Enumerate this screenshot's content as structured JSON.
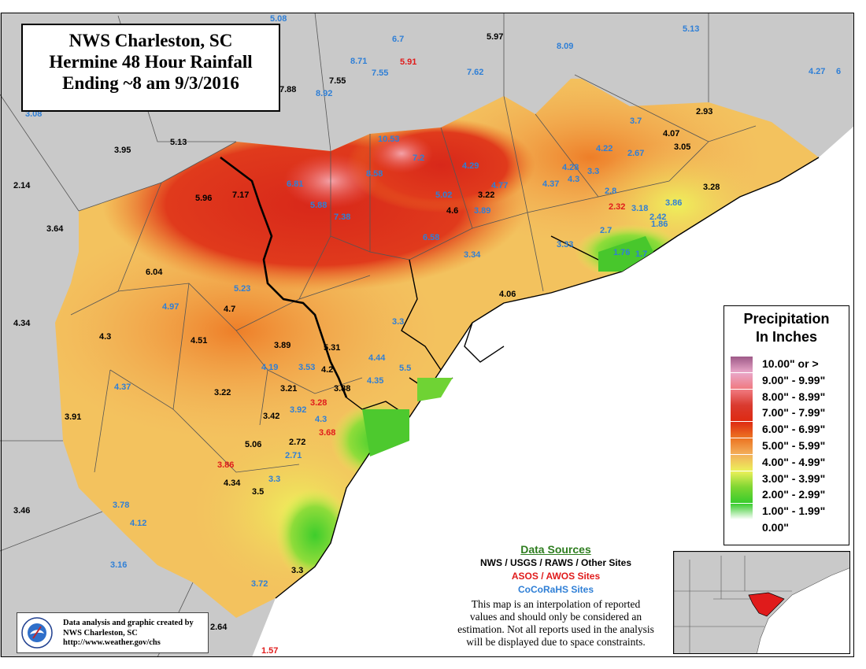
{
  "title": {
    "line1": "NWS Charleston, SC",
    "line2": "Hermine 48 Hour Rainfall",
    "line3": "Ending ~8 am 9/3/2016"
  },
  "legend": {
    "title_line1": "Precipitation",
    "title_line2": "In Inches",
    "items": [
      {
        "label": "10.00\" or >",
        "color": "#9e5a88"
      },
      {
        "label": "9.00\" - 9.99\"",
        "color": "#e9a6c8"
      },
      {
        "label": "8.00\" - 8.99\"",
        "color": "#f07a80"
      },
      {
        "label": "7.00\" - 7.99\"",
        "color": "#d93a2f"
      },
      {
        "label": "6.00\" - 6.99\"",
        "color": "#de2a12"
      },
      {
        "label": "5.00\" - 5.99\"",
        "color": "#ec7422"
      },
      {
        "label": "4.00\" - 4.99\"",
        "color": "#f3b05b"
      },
      {
        "label": "3.00\" - 3.99\"",
        "color": "#ecf05a"
      },
      {
        "label": "2.00\" - 2.99\"",
        "color": "#7fd632"
      },
      {
        "label": "1.00\" - 1.99\"",
        "color": "#38cc2c"
      },
      {
        "label": "0.00\"",
        "color": "#ffffff"
      }
    ]
  },
  "sources": {
    "heading": "Data Sources",
    "line_nws": "NWS / USGS / RAWS / Other Sites",
    "line_asos": "ASOS / AWOS Sites",
    "line_cocorahs": "CoCoRaHS Sites",
    "note_line1": "This map is an interpolation of reported",
    "note_line2": "values and should only be considered an",
    "note_line3": "estimation. Not all reports used in the analysis",
    "note_line4": "will be displayed due to space constraints.",
    "colors": {
      "nws": "#000000",
      "asos": "#e01b1b",
      "cocorahs": "#2f7fd6",
      "heading": "#2e7d1f"
    }
  },
  "credit": {
    "line1": "Data analysis and graphic created by",
    "line2": "NWS Charleston, SC",
    "line3": "http://www.weather.gov/chs",
    "logo_text": "NATIONAL WEATHER SERVICE"
  },
  "observations": [
    {
      "v": "5.08",
      "t": "c"
    },
    {
      "v": "6.7",
      "t": "c"
    },
    {
      "v": "5.97",
      "t": "n"
    },
    {
      "v": "8.09",
      "t": "c"
    },
    {
      "v": "5.13",
      "t": "c"
    },
    {
      "v": "8.71",
      "t": "c"
    },
    {
      "v": "5.91",
      "t": "a"
    },
    {
      "v": "7.55",
      "t": "c"
    },
    {
      "v": "7.62",
      "t": "c"
    },
    {
      "v": "4.27",
      "t": "c"
    },
    {
      "v": "6",
      "t": "c"
    },
    {
      "v": "7.88",
      "t": "n"
    },
    {
      "v": "7.55",
      "t": "n"
    },
    {
      "v": "8.92",
      "t": "c"
    },
    {
      "v": "3.08",
      "t": "c"
    },
    {
      "v": "2.93",
      "t": "n"
    },
    {
      "v": "3.7",
      "t": "c"
    },
    {
      "v": "4.07",
      "t": "n"
    },
    {
      "v": "3.05",
      "t": "n"
    },
    {
      "v": "3.95",
      "t": "n"
    },
    {
      "v": "5.13",
      "t": "n"
    },
    {
      "v": "10.53",
      "t": "c"
    },
    {
      "v": "4.22",
      "t": "c"
    },
    {
      "v": "2.67",
      "t": "c"
    },
    {
      "v": "7.2",
      "t": "c"
    },
    {
      "v": "4.29",
      "t": "c"
    },
    {
      "v": "4.28",
      "t": "c"
    },
    {
      "v": "3.3",
      "t": "c"
    },
    {
      "v": "8.58",
      "t": "c"
    },
    {
      "v": "4.37",
      "t": "c"
    },
    {
      "v": "4.3",
      "t": "c"
    },
    {
      "v": "3.28",
      "t": "n"
    },
    {
      "v": "2.14",
      "t": "n"
    },
    {
      "v": "6.81",
      "t": "c"
    },
    {
      "v": "5.02",
      "t": "c"
    },
    {
      "v": "3.22",
      "t": "n"
    },
    {
      "v": "4.77",
      "t": "c"
    },
    {
      "v": "2.8",
      "t": "c"
    },
    {
      "v": "5.96",
      "t": "n"
    },
    {
      "v": "7.17",
      "t": "n"
    },
    {
      "v": "5.88",
      "t": "c"
    },
    {
      "v": "4.6",
      "t": "n"
    },
    {
      "v": "3.89",
      "t": "c"
    },
    {
      "v": "2.32",
      "t": "a"
    },
    {
      "v": "3.18",
      "t": "c"
    },
    {
      "v": "3.86",
      "t": "c"
    },
    {
      "v": "7.38",
      "t": "c"
    },
    {
      "v": "2.42",
      "t": "c"
    },
    {
      "v": "3.64",
      "t": "n"
    },
    {
      "v": "1.86",
      "t": "c"
    },
    {
      "v": "6.58",
      "t": "c"
    },
    {
      "v": "2.7",
      "t": "c"
    },
    {
      "v": "3.33",
      "t": "c"
    },
    {
      "v": "3.34",
      "t": "c"
    },
    {
      "v": "1.76",
      "t": "c"
    },
    {
      "v": "1.7",
      "t": "c"
    },
    {
      "v": "6.04",
      "t": "n"
    },
    {
      "v": "5.23",
      "t": "c"
    },
    {
      "v": "4.06",
      "t": "n"
    },
    {
      "v": "4.97",
      "t": "c"
    },
    {
      "v": "4.7",
      "t": "n"
    },
    {
      "v": "4.34",
      "t": "n"
    },
    {
      "v": "3.3",
      "t": "c"
    },
    {
      "v": "4.3",
      "t": "n"
    },
    {
      "v": "4.51",
      "t": "n"
    },
    {
      "v": "3.89",
      "t": "n"
    },
    {
      "v": "5.31",
      "t": "n"
    },
    {
      "v": "4.44",
      "t": "c"
    },
    {
      "v": "4.19",
      "t": "c"
    },
    {
      "v": "3.53",
      "t": "c"
    },
    {
      "v": "4.2",
      "t": "n"
    },
    {
      "v": "5.5",
      "t": "c"
    },
    {
      "v": "4.37",
      "t": "c"
    },
    {
      "v": "3.21",
      "t": "n"
    },
    {
      "v": "4.35",
      "t": "c"
    },
    {
      "v": "3.22",
      "t": "n"
    },
    {
      "v": "3.88",
      "t": "n"
    },
    {
      "v": "3.28",
      "t": "a"
    },
    {
      "v": "3.91",
      "t": "n"
    },
    {
      "v": "3.42",
      "t": "n"
    },
    {
      "v": "3.92",
      "t": "c"
    },
    {
      "v": "4.3",
      "t": "c"
    },
    {
      "v": "3.68",
      "t": "a"
    },
    {
      "v": "2.72",
      "t": "n"
    },
    {
      "v": "5.06",
      "t": "n"
    },
    {
      "v": "2.71",
      "t": "c"
    },
    {
      "v": "3.86",
      "t": "a"
    },
    {
      "v": "4.34",
      "t": "n"
    },
    {
      "v": "3.3",
      "t": "c"
    },
    {
      "v": "3.5",
      "t": "n"
    },
    {
      "v": "3.46",
      "t": "n"
    },
    {
      "v": "3.78",
      "t": "c"
    },
    {
      "v": "4.12",
      "t": "c"
    },
    {
      "v": "3.16",
      "t": "c"
    },
    {
      "v": "3.3",
      "t": "n"
    },
    {
      "v": "3.72",
      "t": "c"
    },
    {
      "v": "2.64",
      "t": "n"
    },
    {
      "v": "1.57",
      "t": "a"
    }
  ]
}
